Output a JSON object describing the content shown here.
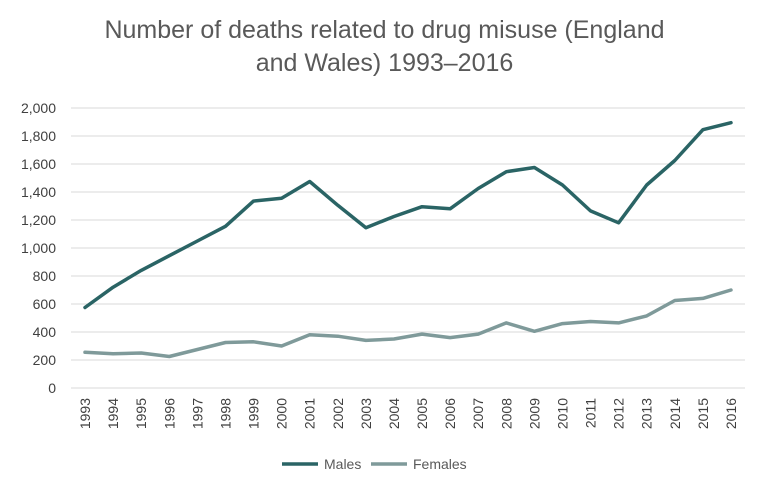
{
  "chart_data": {
    "type": "line",
    "title_lines": [
      "Number of deaths related to drug misuse (England",
      "and Wales) 1993–2016"
    ],
    "x": [
      "1993",
      "1994",
      "1995",
      "1996",
      "1997",
      "1998",
      "1999",
      "2000",
      "2001",
      "2002",
      "2003",
      "2004",
      "2005",
      "2006",
      "2007",
      "2008",
      "2009",
      "2010",
      "2011",
      "2012",
      "2013",
      "2014",
      "2015",
      "2016"
    ],
    "series": [
      {
        "name": "Males",
        "color": "#2a6465",
        "values": [
          575,
          720,
          840,
          945,
          1050,
          1155,
          1335,
          1355,
          1475,
          1305,
          1145,
          1225,
          1295,
          1280,
          1425,
          1545,
          1575,
          1450,
          1265,
          1180,
          1450,
          1625,
          1845,
          1895
        ]
      },
      {
        "name": "Females",
        "color": "#7f9a9a",
        "values": [
          255,
          245,
          250,
          225,
          275,
          325,
          330,
          300,
          380,
          370,
          340,
          350,
          385,
          360,
          385,
          465,
          405,
          460,
          475,
          465,
          515,
          625,
          640,
          700
        ]
      }
    ],
    "ylim": [
      0,
      2000
    ],
    "yticks": [
      "0",
      "200",
      "400",
      "600",
      "800",
      "1,000",
      "1,200",
      "1,400",
      "1,600",
      "1,800",
      "2,000"
    ],
    "grid": true,
    "legend_position": "bottom"
  }
}
